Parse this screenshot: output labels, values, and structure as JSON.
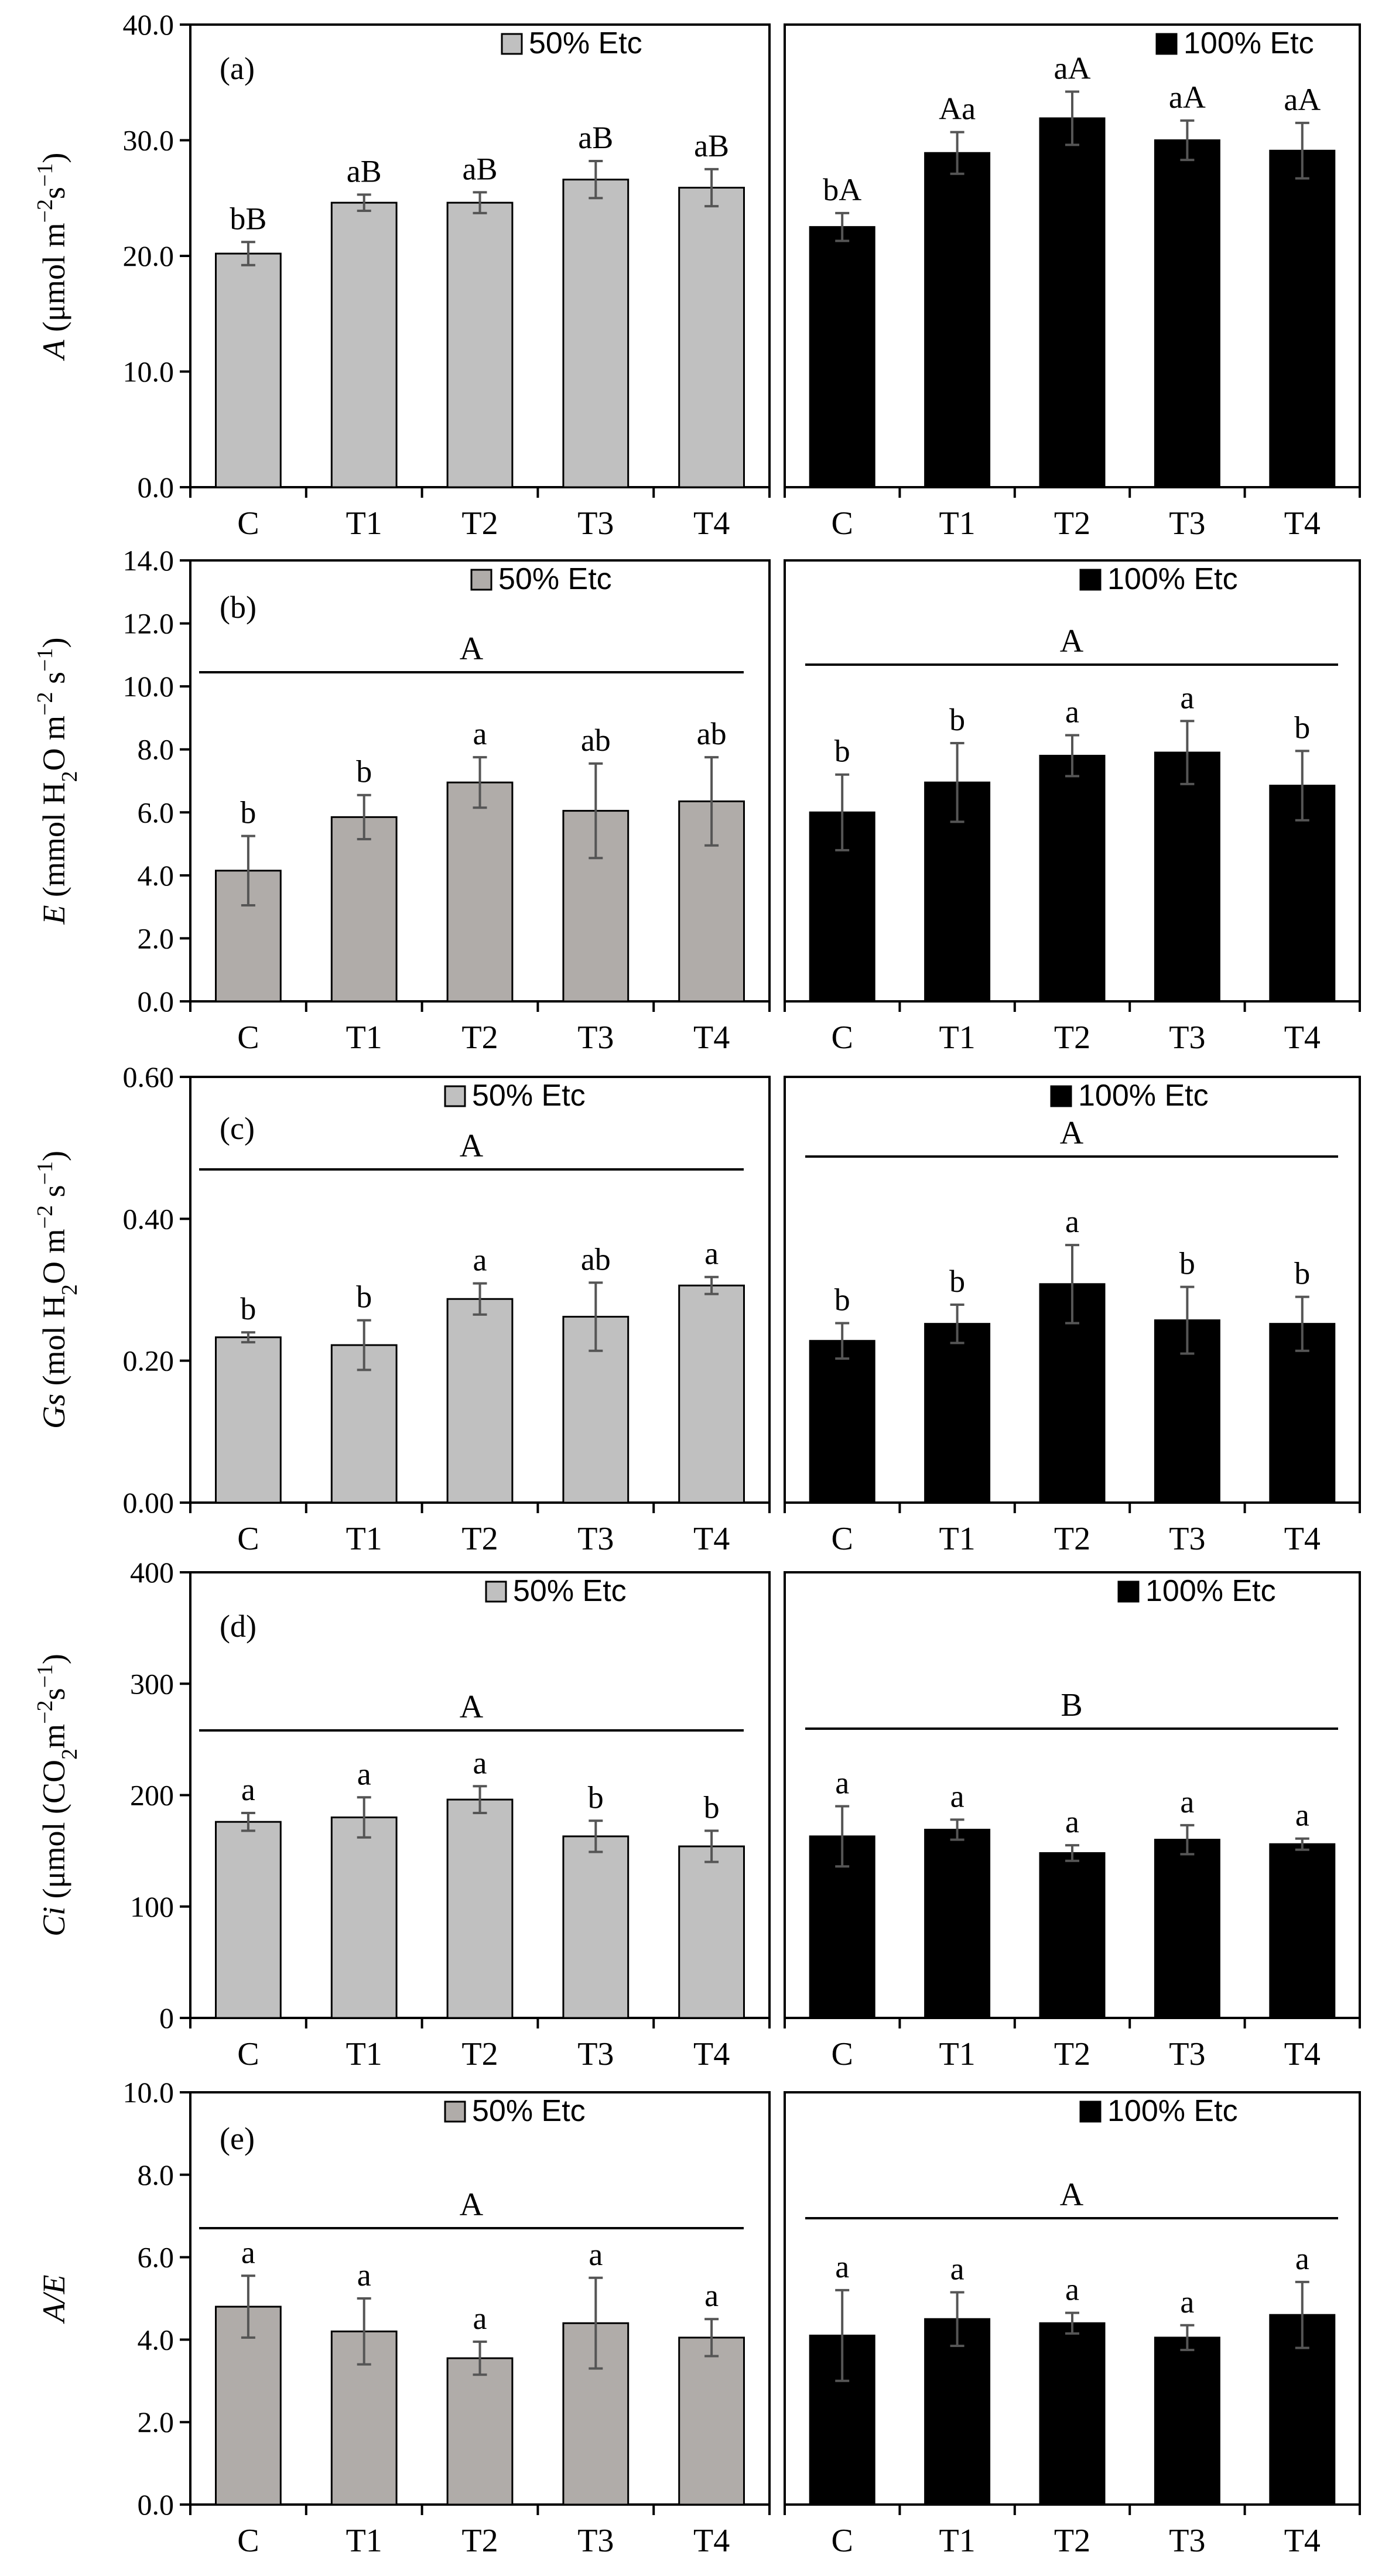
{
  "chart_data": [
    {
      "type": "bar",
      "panel_label": "(a)",
      "y_label": {
        "italic": "A",
        "rest": " (μmol m",
        "sup1": "−2",
        "mid": "s",
        "sup2": "−1",
        "end": ")"
      },
      "yticks": [
        "0.0",
        "10.0",
        "20.0",
        "30.0",
        "40.0"
      ],
      "ylim": [
        0,
        40
      ],
      "categories": [
        "C",
        "T1",
        "T2",
        "T3",
        "T4"
      ],
      "group_label": null,
      "series": [
        {
          "name": "50% Etc",
          "color": "#c0c0c0",
          "values": [
            20.2,
            24.6,
            24.6,
            26.6,
            25.9
          ],
          "errors": [
            1.0,
            0.7,
            0.9,
            1.6,
            1.6
          ],
          "labels": [
            "bB",
            "aB",
            "aB",
            "aB",
            "aB"
          ]
        },
        {
          "name": "100% Etc",
          "color": "#000000",
          "values": [
            22.5,
            28.9,
            31.9,
            30.0,
            29.1
          ],
          "errors": [
            1.2,
            1.8,
            2.3,
            1.7,
            2.4
          ],
          "labels": [
            "bA",
            "Aa",
            "aA",
            "aA",
            "aA"
          ]
        }
      ]
    },
    {
      "type": "bar",
      "panel_label": "(b)",
      "y_label": {
        "italic": "E",
        "rest": " (mmol H",
        "sub": "2",
        "mid2": "O m",
        "sup1": "−2",
        "mid": " s",
        "sup2": "−1",
        "end": ")"
      },
      "yticks": [
        "0.0",
        "2.0",
        "4.0",
        "6.0",
        "8.0",
        "10.0",
        "12.0",
        "14.0"
      ],
      "ylim": [
        0,
        14
      ],
      "categories": [
        "C",
        "T1",
        "T2",
        "T3",
        "T4"
      ],
      "series": [
        {
          "name": "50% Etc",
          "color": "#b0aca9",
          "values": [
            4.15,
            5.85,
            6.95,
            6.05,
            6.35
          ],
          "errors": [
            1.1,
            0.7,
            0.8,
            1.5,
            1.4
          ],
          "labels": [
            "b",
            "b",
            "a",
            "ab",
            "ab"
          ],
          "group_label": "A"
        },
        {
          "name": "100% Etc",
          "color": "#000000",
          "values": [
            6.0,
            6.95,
            7.8,
            7.9,
            6.85
          ],
          "errors": [
            1.2,
            1.25,
            0.65,
            1.0,
            1.1
          ],
          "labels": [
            "b",
            "b",
            "a",
            "a",
            "b"
          ],
          "group_label": "A"
        }
      ]
    },
    {
      "type": "bar",
      "panel_label": "(c)",
      "y_label": {
        "italic": "Gs",
        "rest": " (mol H",
        "sub": "2",
        "mid2": "O m",
        "sup1": "−2",
        "mid": " s",
        "sup2": "−1",
        "end": ")"
      },
      "yticks": [
        "0.00",
        "0.20",
        "0.40",
        "0.60"
      ],
      "ylim": [
        0,
        0.6
      ],
      "categories": [
        "C",
        "T1",
        "T2",
        "T3",
        "T4"
      ],
      "series": [
        {
          "name": "50% Etc",
          "color": "#c0c0c0",
          "values": [
            0.233,
            0.222,
            0.287,
            0.262,
            0.306
          ],
          "errors": [
            0.007,
            0.035,
            0.022,
            0.048,
            0.012
          ],
          "labels": [
            "b",
            "b",
            "a",
            "ab",
            "a"
          ],
          "group_label": "A"
        },
        {
          "name": "100% Etc",
          "color": "#000000",
          "values": [
            0.228,
            0.252,
            0.308,
            0.257,
            0.252
          ],
          "errors": [
            0.025,
            0.027,
            0.055,
            0.047,
            0.038
          ],
          "labels": [
            "b",
            "b",
            "a",
            "b",
            "b"
          ],
          "group_label": "A"
        }
      ]
    },
    {
      "type": "bar",
      "panel_label": "(d)",
      "y_label": {
        "italic": "Ci",
        "rest": " (μmol (CO",
        "sub": "2",
        "mid2": "m",
        "sup1": "−2",
        "mid": "s",
        "sup2": "−1",
        "end": ")"
      },
      "yticks": [
        "0",
        "100",
        "200",
        "300",
        "400"
      ],
      "ylim": [
        0,
        400
      ],
      "categories": [
        "C",
        "T1",
        "T2",
        "T3",
        "T4"
      ],
      "series": [
        {
          "name": "50% Etc",
          "color": "#c0c0c0",
          "values": [
            176,
            180,
            196,
            163,
            154
          ],
          "errors": [
            8,
            18,
            12,
            14,
            14
          ],
          "labels": [
            "a",
            "a",
            "a",
            "b",
            "b"
          ],
          "group_label": "A"
        },
        {
          "name": "100% Etc",
          "color": "#000000",
          "values": [
            163,
            169,
            148,
            160,
            156
          ],
          "errors": [
            27,
            9,
            7,
            13,
            5
          ],
          "labels": [
            "a",
            "a",
            "a",
            "a",
            "a"
          ],
          "group_label": "B"
        }
      ]
    },
    {
      "type": "bar",
      "panel_label": "(e)",
      "y_label": {
        "italic": "A/E"
      },
      "yticks": [
        "0.0",
        "2.0",
        "4.0",
        "6.0",
        "8.0",
        "10.0"
      ],
      "ylim": [
        0,
        10
      ],
      "categories": [
        "C",
        "T1",
        "T2",
        "T3",
        "T4"
      ],
      "series": [
        {
          "name": "50% Etc",
          "color": "#b0aca9",
          "values": [
            4.8,
            4.2,
            3.55,
            4.4,
            4.05
          ],
          "errors": [
            0.75,
            0.8,
            0.4,
            1.1,
            0.45
          ],
          "labels": [
            "a",
            "a",
            "a",
            "a",
            "a"
          ],
          "group_label": "A"
        },
        {
          "name": "100% Etc",
          "color": "#000000",
          "values": [
            4.1,
            4.5,
            4.4,
            4.05,
            4.6
          ],
          "errors": [
            1.1,
            0.65,
            0.25,
            0.3,
            0.8
          ],
          "labels": [
            "a",
            "a",
            "a",
            "a",
            "a"
          ],
          "group_label": "A"
        }
      ]
    }
  ]
}
